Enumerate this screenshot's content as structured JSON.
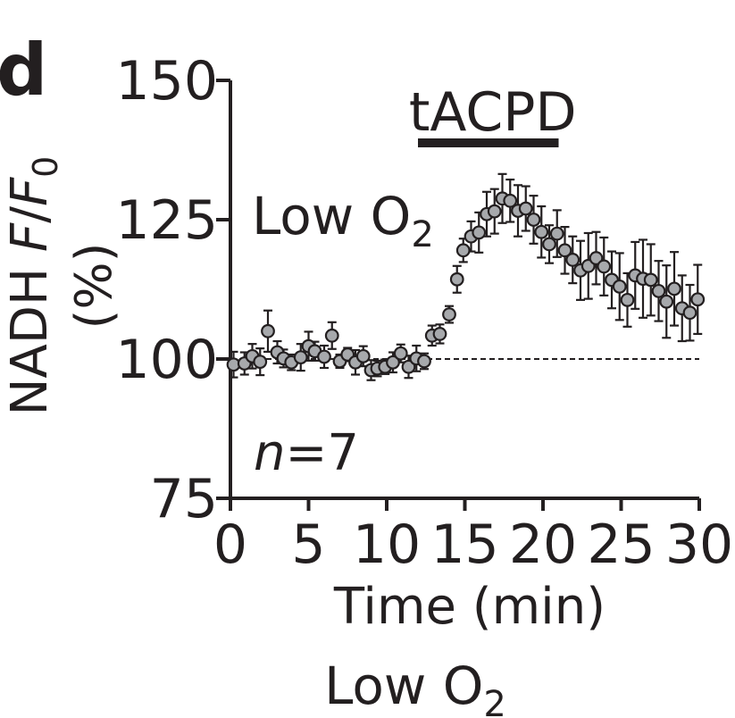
{
  "panel_label": "d",
  "chart_data": {
    "type": "scatter",
    "ylabel": "NADH F/F0 (%)",
    "xlabel": "Time (min)",
    "xlim": [
      0,
      30
    ],
    "ylim": [
      75,
      150
    ],
    "x_ticks": [
      "0",
      "5",
      "10",
      "15",
      "20",
      "25",
      "30"
    ],
    "y_ticks": [
      "75",
      "100",
      "125",
      "150"
    ],
    "baseline": 100,
    "drug_bar": {
      "label": "tACPD",
      "start": 12,
      "end": 21
    },
    "inset_condition": "Low O",
    "n_label": "n=7",
    "series": [
      {
        "x": [
          0.2,
          0.9,
          1.4,
          1.9,
          2.4,
          3.0,
          3.4,
          3.9,
          4.5,
          5.0,
          5.4,
          6.0,
          6.5,
          7.0,
          7.5,
          8.0,
          8.5,
          9.0,
          9.4,
          9.9,
          10.4,
          10.9,
          11.4,
          11.9,
          12.4,
          12.9,
          13.4,
          14.0,
          14.5,
          14.9,
          15.4,
          15.9,
          16.4,
          16.9,
          17.4,
          17.9,
          18.4,
          18.9,
          19.4,
          19.9,
          20.4,
          20.9,
          21.4,
          21.9,
          22.4,
          22.9,
          23.4,
          23.9,
          24.4,
          24.9,
          25.4,
          25.9,
          26.4,
          26.9,
          27.4,
          27.9,
          28.4,
          28.9,
          29.4,
          29.9
        ],
        "y": [
          99.0,
          99.2,
          100.5,
          99.5,
          105.0,
          101.2,
          100.1,
          99.4,
          100.3,
          102.3,
          101.4,
          100.4,
          104.2,
          99.6,
          100.8,
          99.4,
          100.5,
          98.0,
          98.3,
          98.6,
          99.4,
          101.0,
          98.6,
          100.1,
          99.6,
          104.2,
          104.5,
          108.0,
          114.3,
          119.5,
          122.0,
          122.7,
          126.0,
          126.5,
          128.8,
          128.4,
          126.6,
          127.0,
          125.0,
          122.8,
          120.6,
          122.5,
          119.5,
          117.8,
          115.9,
          116.7,
          118.1,
          116.6,
          114.2,
          113.0,
          110.6,
          115.0,
          114.4,
          114.2,
          112.2,
          110.3,
          112.6,
          109.1,
          108.3,
          110.7
        ],
        "err": [
          2.3,
          2.0,
          2.2,
          2.4,
          3.7,
          2.0,
          1.6,
          1.4,
          2.4,
          2.6,
          1.7,
          2.0,
          2.4,
          1.2,
          1.2,
          2.2,
          1.8,
          1.8,
          1.4,
          1.3,
          1.8,
          1.6,
          2.0,
          2.3,
          1.4,
          1.8,
          1.7,
          1.5,
          2.4,
          2.1,
          2.7,
          3.6,
          4.0,
          4.0,
          4.4,
          3.8,
          4.6,
          4.0,
          4.3,
          4.6,
          3.4,
          4.2,
          4.2,
          4.2,
          5.3,
          5.9,
          4.7,
          5.2,
          5.1,
          6.0,
          4.8,
          6.0,
          7.0,
          6.4,
          5.4,
          6.5,
          6.6,
          5.9,
          5.0,
          6.2
        ]
      }
    ]
  },
  "footer_condition": "Low O"
}
